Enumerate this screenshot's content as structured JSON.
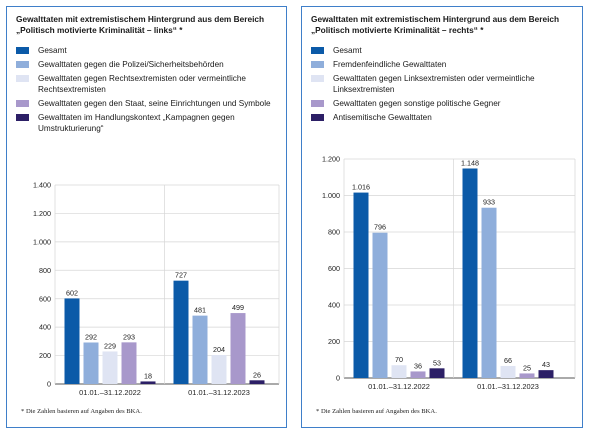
{
  "panels": [
    {
      "title": "Gewalttaten mit extremistischem Hintergrund aus dem Bereich „Politisch motivierte Kriminalität – links“ *",
      "footnote": "* Die Zahlen basieren auf Angaben des BKA."
    },
    {
      "title": "Gewalttaten mit extremistischem Hintergrund aus dem Bereich „Politisch motivierte Kriminalität – rechts“ *",
      "footnote": "* Die Zahlen basieren auf Angaben des BKA."
    }
  ],
  "chart_data": [
    {
      "type": "bar",
      "title": "Gewalttaten mit extremistischem Hintergrund aus dem Bereich „Politisch motivierte Kriminalität – links“ *",
      "categories": [
        "01.01.–31.12.2022",
        "01.01.–31.12.2023"
      ],
      "series": [
        {
          "name": "Gesamt",
          "color": "#0b5aa8",
          "values": [
            602,
            727
          ]
        },
        {
          "name": "Gewalttaten gegen die Polizei/Sicherheitsbehörden",
          "color": "#8faedb",
          "values": [
            292,
            481
          ]
        },
        {
          "name": "Gewalttaten gegen Rechtsextremisten oder vermeintliche Rechtsextremisten",
          "color": "#dfe4f3",
          "values": [
            229,
            204
          ]
        },
        {
          "name": "Gewalttaten gegen den Staat, seine Einrichtungen und Symbole",
          "color": "#a898cb",
          "values": [
            293,
            499
          ]
        },
        {
          "name": "Gewalttaten im Handlungskontext „Kampagnen gegen Umstrukturierung“",
          "color": "#2c1f66",
          "values": [
            18,
            26
          ]
        }
      ],
      "data_labels": [
        [
          "602",
          "292",
          "229",
          "293",
          "18"
        ],
        [
          "727",
          "481",
          "204",
          "499",
          "26"
        ]
      ],
      "ylim": [
        0,
        1400
      ],
      "yticks": [
        0,
        200,
        400,
        600,
        800,
        1000,
        1200,
        1400
      ],
      "ytick_labels": [
        "0",
        "200",
        "400",
        "600",
        "800",
        "1.000",
        "1.200",
        "1.400"
      ],
      "grid": true,
      "legend": "top",
      "xlabel": "",
      "ylabel": ""
    },
    {
      "type": "bar",
      "title": "Gewalttaten mit extremistischem Hintergrund aus dem Bereich „Politisch motivierte Kriminalität – rechts“ *",
      "categories": [
        "01.01.–31.12.2022",
        "01.01.–31.12.2023"
      ],
      "series": [
        {
          "name": "Gesamt",
          "color": "#0b5aa8",
          "values": [
            1016,
            1148
          ]
        },
        {
          "name": "Fremdenfeindliche Gewalttaten",
          "color": "#8faedb",
          "values": [
            796,
            933
          ]
        },
        {
          "name": "Gewalttaten gegen Linksextremisten oder vermeintliche Linksextremisten",
          "color": "#dfe4f3",
          "values": [
            70,
            66
          ]
        },
        {
          "name": "Gewalttaten gegen sonstige politische Gegner",
          "color": "#a898cb",
          "values": [
            36,
            25
          ]
        },
        {
          "name": "Antisemitische Gewalttaten",
          "color": "#2c1f66",
          "values": [
            53,
            43
          ]
        }
      ],
      "data_labels": [
        [
          "1.016",
          "796",
          "70",
          "36",
          "53"
        ],
        [
          "1.148",
          "933",
          "66",
          "25",
          "43"
        ]
      ],
      "ylim": [
        0,
        1200
      ],
      "yticks": [
        0,
        200,
        400,
        600,
        800,
        1000,
        1200
      ],
      "ytick_labels": [
        "0",
        "200",
        "400",
        "600",
        "800",
        "1.000",
        "1.200"
      ],
      "grid": true,
      "legend": "top",
      "xlabel": "",
      "ylabel": ""
    }
  ]
}
